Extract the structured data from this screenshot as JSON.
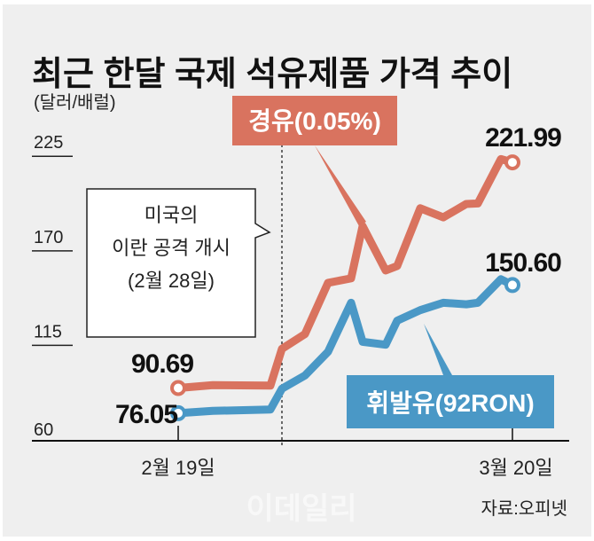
{
  "chart_data": {
    "type": "line",
    "title": "최근 한달 국제 석유제품 가격 추이",
    "unit_label": "(달러/배럴)",
    "source": "자료:오피넷",
    "watermark": "이데일리",
    "y_ticks": [
      "225",
      "170",
      "115",
      "60"
    ],
    "ylim": [
      60,
      225
    ],
    "x_tick_labels": [
      "2월 19일",
      "3월 20일"
    ],
    "x_ticks": [
      "02-19",
      "03-20"
    ],
    "grid": false,
    "annotation": {
      "date": "02-28",
      "lines": [
        "미국의",
        "이란 공격 개시",
        "(2월 28일)"
      ]
    },
    "x": [
      "02-19",
      "02-22",
      "02-27",
      "02-28",
      "03-02",
      "03-04",
      "03-06",
      "03-07",
      "03-09",
      "03-10",
      "03-12",
      "03-14",
      "03-16",
      "03-17",
      "03-19",
      "03-20"
    ],
    "series": [
      {
        "name": "경유(0.05%)",
        "color": "#d9735f",
        "start_label": "90.69",
        "end_label": "221.99",
        "values": [
          90.69,
          92.4,
          92.1,
          113.5,
          122.1,
          151.9,
          154.5,
          184.9,
          159.1,
          161.7,
          195.3,
          190.0,
          197.8,
          198.1,
          223.9,
          221.99
        ]
      },
      {
        "name": "휘발유(92RON)",
        "color": "#4a98c6",
        "start_label": "76.05",
        "end_label": "150.60",
        "values": [
          76.05,
          77.4,
          78.2,
          90.3,
          98.0,
          111.8,
          140.3,
          117.6,
          115.9,
          129.9,
          136.0,
          140.3,
          139.4,
          140.3,
          154.0,
          150.6
        ]
      }
    ]
  }
}
